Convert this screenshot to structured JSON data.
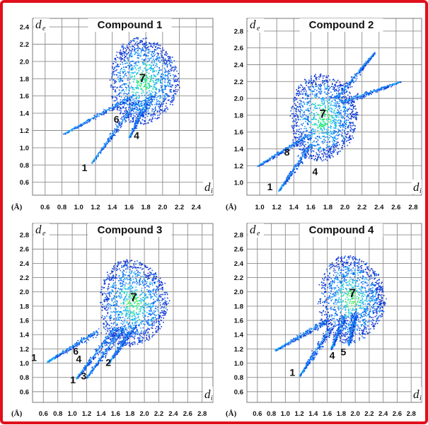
{
  "figure": {
    "border_color": "#e0101c",
    "grid_color": "#8c8c8c",
    "cloud_palette": [
      "#1030d0",
      "#0a64f0",
      "#16a8ff",
      "#22e0b8",
      "#30f040"
    ]
  },
  "chart_data": [
    {
      "type": "scatter",
      "title": "Compound 1",
      "xlabel": "d",
      "xlabel_sub": "i",
      "ylabel": "d",
      "ylabel_sub": "e",
      "unit_label": "(Å)",
      "xlim": [
        0.45,
        2.6
      ],
      "ylim": [
        0.45,
        2.45
      ],
      "xticks": [
        "0.6",
        "0.8",
        "1.0",
        "1.2",
        "1.4",
        "1.6",
        "1.8",
        "2.0",
        "2.2",
        "2.4"
      ],
      "yticks": [
        "0.6",
        "0.8",
        "1.0",
        "1.2",
        "1.4",
        "1.6",
        "1.8",
        "2.0",
        "2.2",
        "2.4"
      ],
      "grid": true,
      "central_region": {
        "x": 1.78,
        "y": 1.78
      },
      "wings": [
        {
          "from": [
            1.65,
            1.6
          ],
          "to": [
            0.82,
            1.16
          ]
        },
        {
          "from": [
            1.7,
            1.55
          ],
          "to": [
            1.15,
            0.82
          ]
        },
        {
          "from": [
            1.85,
            1.6
          ],
          "to": [
            1.6,
            1.12
          ]
        }
      ],
      "annotations": [
        {
          "label": "7",
          "x": 1.76,
          "y": 1.76
        },
        {
          "label": "6",
          "x": 1.45,
          "y": 1.29
        },
        {
          "label": "4",
          "x": 1.69,
          "y": 1.1
        },
        {
          "label": "1",
          "x": 1.07,
          "y": 0.73
        }
      ]
    },
    {
      "type": "scatter",
      "title": "Compound 2",
      "xlabel": "d",
      "xlabel_sub": "i",
      "ylabel": "d",
      "ylabel_sub": "e",
      "unit_label": "(Å)",
      "xlim": [
        0.85,
        2.9
      ],
      "ylim": [
        0.85,
        2.9
      ],
      "xticks": [
        "1.0",
        "1.2",
        "1.4",
        "1.6",
        "1.8",
        "2.0",
        "2.2",
        "2.4",
        "2.6",
        "2.8"
      ],
      "yticks": [
        "1.0",
        "1.2",
        "1.4",
        "1.6",
        "1.8",
        "2.0",
        "2.2",
        "2.4",
        "2.6",
        "2.8"
      ],
      "grid": true,
      "central_region": {
        "x": 1.75,
        "y": 1.78
      },
      "wings": [
        {
          "from": [
            1.55,
            1.55
          ],
          "to": [
            0.98,
            1.2
          ]
        },
        {
          "from": [
            1.6,
            1.45
          ],
          "to": [
            1.22,
            0.9
          ]
        },
        {
          "from": [
            1.95,
            1.95
          ],
          "to": [
            2.65,
            2.2
          ]
        },
        {
          "from": [
            1.9,
            2.0
          ],
          "to": [
            2.35,
            2.55
          ]
        }
      ],
      "annotations": [
        {
          "label": "7",
          "x": 1.74,
          "y": 1.77
        },
        {
          "label": "8",
          "x": 1.32,
          "y": 1.32
        },
        {
          "label": "4",
          "x": 1.65,
          "y": 1.09
        },
        {
          "label": "1",
          "x": 1.12,
          "y": 0.91
        }
      ]
    },
    {
      "type": "scatter",
      "title": "Compound 3",
      "xlabel": "d",
      "xlabel_sub": "i",
      "ylabel": "d",
      "ylabel_sub": "e",
      "unit_label": "(Å)",
      "xlim": [
        0.45,
        2.95
      ],
      "ylim": [
        0.45,
        2.9
      ],
      "xticks": [
        "0.6",
        "0.8",
        "1.0",
        "1.2",
        "1.4",
        "1.6",
        "1.8",
        "2.0",
        "2.2",
        "2.4",
        "2.6",
        "2.8"
      ],
      "yticks": [
        "0.6",
        "0.8",
        "1.0",
        "1.2",
        "1.4",
        "1.6",
        "1.8",
        "2.0",
        "2.2",
        "2.4",
        "2.6",
        "2.8"
      ],
      "grid": true,
      "central_region": {
        "x": 1.85,
        "y": 1.85
      },
      "wings": [
        {
          "from": [
            1.35,
            1.45
          ],
          "to": [
            0.65,
            1.02
          ]
        },
        {
          "from": [
            1.6,
            1.5
          ],
          "to": [
            1.05,
            0.78
          ]
        },
        {
          "from": [
            1.7,
            1.5
          ],
          "to": [
            1.2,
            0.8
          ]
        },
        {
          "from": [
            1.85,
            1.5
          ],
          "to": [
            1.5,
            1.0
          ]
        }
      ],
      "annotations": [
        {
          "label": "7",
          "x": 1.85,
          "y": 1.87
        },
        {
          "label": "1",
          "x": 0.47,
          "y": 1.03
        },
        {
          "label": "6",
          "x": 1.05,
          "y": 1.12
        },
        {
          "label": "4",
          "x": 1.09,
          "y": 1.01
        },
        {
          "label": "2",
          "x": 1.5,
          "y": 0.96
        },
        {
          "label": "1",
          "x": 1.01,
          "y": 0.72
        },
        {
          "label": "3",
          "x": 1.16,
          "y": 0.77
        }
      ]
    },
    {
      "type": "scatter",
      "title": "Compound 4",
      "xlabel": "d",
      "xlabel_sub": "i",
      "ylabel": "d",
      "ylabel_sub": "e",
      "unit_label": "(Å)",
      "xlim": [
        0.45,
        2.95
      ],
      "ylim": [
        0.45,
        2.9
      ],
      "xticks": [
        "0.6",
        "0.8",
        "1.0",
        "1.2",
        "1.4",
        "1.6",
        "1.8",
        "2.0",
        "2.2",
        "2.4",
        "2.6",
        "2.8"
      ],
      "yticks": [
        "0.6",
        "0.8",
        "1.0",
        "1.2",
        "1.4",
        "1.6",
        "1.8",
        "2.0",
        "2.2",
        "2.4",
        "2.6",
        "2.8"
      ],
      "grid": true,
      "central_region": {
        "x": 1.95,
        "y": 1.9
      },
      "wings": [
        {
          "from": [
            1.6,
            1.6
          ],
          "to": [
            0.85,
            1.18
          ]
        },
        {
          "from": [
            1.65,
            1.5
          ],
          "to": [
            1.2,
            0.82
          ]
        },
        {
          "from": [
            1.85,
            1.65
          ],
          "to": [
            1.65,
            1.2
          ]
        },
        {
          "from": [
            2.0,
            1.7
          ],
          "to": [
            1.9,
            1.25
          ]
        }
      ],
      "annotations": [
        {
          "label": "7",
          "x": 1.96,
          "y": 1.93
        },
        {
          "label": "1",
          "x": 1.1,
          "y": 0.82
        },
        {
          "label": "4",
          "x": 1.67,
          "y": 1.06
        },
        {
          "label": "5",
          "x": 1.83,
          "y": 1.11
        }
      ]
    }
  ]
}
